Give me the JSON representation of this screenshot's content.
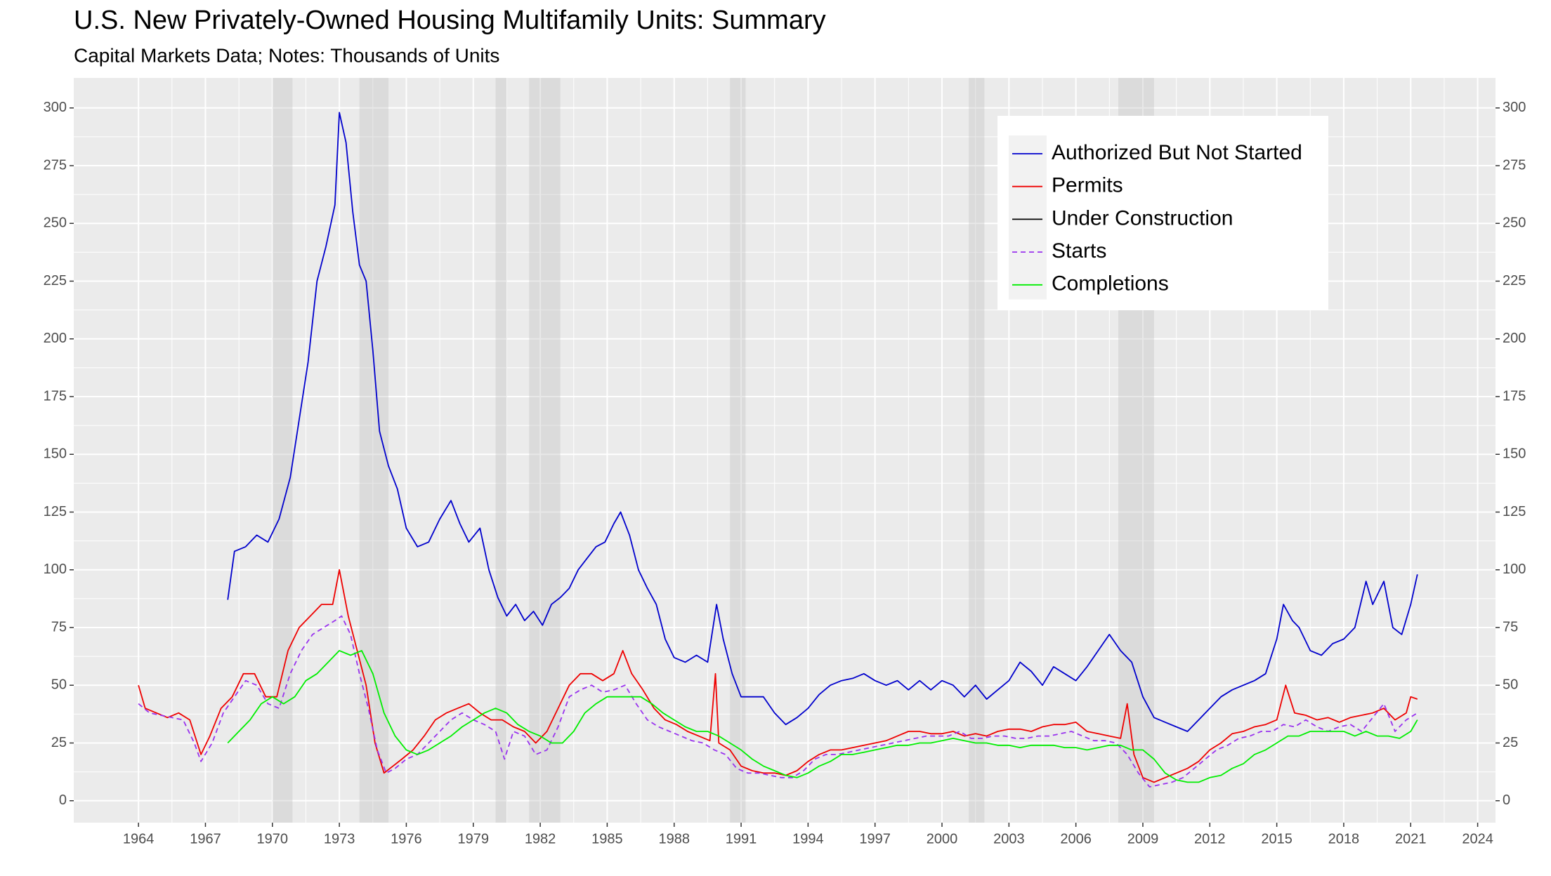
{
  "chart_data": {
    "type": "line",
    "title": "U.S. New Privately-Owned Housing Multifamily Units: Summary",
    "subtitle": "Capital Markets Data; Notes: Thousands of Units",
    "xlim": [
      1961.1,
      2024.8
    ],
    "ylim": [
      -9.5,
      313
    ],
    "xticks": [
      1964,
      1967,
      1970,
      1973,
      1976,
      1979,
      1982,
      1985,
      1988,
      1991,
      1994,
      1997,
      2000,
      2003,
      2006,
      2009,
      2012,
      2015,
      2018,
      2021,
      2024
    ],
    "yticks": [
      0,
      25,
      50,
      75,
      100,
      125,
      150,
      175,
      200,
      225,
      250,
      275,
      300
    ],
    "secondary_y_axis": true,
    "grid": true,
    "legend": "top-right",
    "recessions": [
      [
        1970.0,
        1970.9
      ],
      [
        1973.9,
        1975.2
      ],
      [
        1980.0,
        1980.5
      ],
      [
        1981.5,
        1982.9
      ],
      [
        1990.5,
        1991.2
      ],
      [
        2001.2,
        2001.9
      ],
      [
        2007.9,
        2009.5
      ]
    ],
    "series": [
      {
        "name": "Authorized But Not Started",
        "color": "#0000cc",
        "linestyle": "solid",
        "x": [
          1968.0,
          1968.3,
          1968.8,
          1969.3,
          1969.8,
          1970.3,
          1970.8,
          1971.2,
          1971.6,
          1972.0,
          1972.4,
          1972.8,
          1973.0,
          1973.3,
          1973.6,
          1973.9,
          1974.2,
          1974.5,
          1974.8,
          1975.2,
          1975.6,
          1976.0,
          1976.5,
          1977.0,
          1977.5,
          1978.0,
          1978.4,
          1978.8,
          1979.3,
          1979.7,
          1980.1,
          1980.5,
          1980.9,
          1981.3,
          1981.7,
          1982.1,
          1982.5,
          1982.9,
          1983.3,
          1983.7,
          1984.1,
          1984.5,
          1984.9,
          1985.3,
          1985.6,
          1986.0,
          1986.4,
          1986.8,
          1987.2,
          1987.6,
          1988.0,
          1988.5,
          1989.0,
          1989.5,
          1989.9,
          1990.2,
          1990.6,
          1991.0,
          1991.5,
          1992.0,
          1992.5,
          1993.0,
          1993.5,
          1994.0,
          1994.5,
          1995.0,
          1995.5,
          1996.0,
          1996.5,
          1997.0,
          1997.5,
          1998.0,
          1998.5,
          1999.0,
          1999.5,
          2000.0,
          2000.5,
          2001.0,
          2001.5,
          2002.0,
          2002.5,
          2003.0,
          2003.5,
          2004.0,
          2004.5,
          2005.0,
          2005.5,
          2006.0,
          2006.5,
          2007.0,
          2007.5,
          2008.0,
          2008.5,
          2009.0,
          2009.5,
          2010.0,
          2010.5,
          2011.0,
          2011.5,
          2012.0,
          2012.5,
          2013.0,
          2013.5,
          2014.0,
          2014.5,
          2015.0,
          2015.3,
          2015.7,
          2016.0,
          2016.5,
          2017.0,
          2017.5,
          2018.0,
          2018.5,
          2019.0,
          2019.3,
          2019.8,
          2020.2,
          2020.6,
          2021.0,
          2021.3
        ],
        "values": [
          87,
          108,
          110,
          115,
          112,
          122,
          140,
          165,
          190,
          225,
          240,
          258,
          298,
          285,
          255,
          232,
          225,
          195,
          160,
          145,
          135,
          118,
          110,
          112,
          122,
          130,
          120,
          112,
          118,
          100,
          88,
          80,
          85,
          78,
          82,
          76,
          85,
          88,
          92,
          100,
          105,
          110,
          112,
          120,
          125,
          115,
          100,
          92,
          85,
          70,
          62,
          60,
          63,
          60,
          85,
          70,
          55,
          45,
          45,
          45,
          38,
          33,
          36,
          40,
          46,
          50,
          52,
          53,
          55,
          52,
          50,
          52,
          48,
          52,
          48,
          52,
          50,
          45,
          50,
          44,
          48,
          52,
          60,
          56,
          50,
          58,
          55,
          52,
          58,
          65,
          72,
          65,
          60,
          45,
          36,
          34,
          32,
          30,
          35,
          40,
          45,
          48,
          50,
          52,
          55,
          70,
          85,
          78,
          75,
          65,
          63,
          68,
          70,
          75,
          95,
          85,
          95,
          75,
          72,
          85,
          98
        ]
      },
      {
        "name": "Permits",
        "color": "#ee0000",
        "linestyle": "solid",
        "x": [
          1964.0,
          1964.3,
          1964.8,
          1965.3,
          1965.8,
          1966.3,
          1966.8,
          1967.2,
          1967.7,
          1968.2,
          1968.7,
          1969.2,
          1969.7,
          1970.2,
          1970.7,
          1971.2,
          1971.7,
          1972.2,
          1972.7,
          1973.0,
          1973.4,
          1973.8,
          1974.2,
          1974.6,
          1975.0,
          1975.4,
          1975.8,
          1976.3,
          1976.8,
          1977.3,
          1977.8,
          1978.3,
          1978.8,
          1979.3,
          1979.8,
          1980.3,
          1980.8,
          1981.3,
          1981.8,
          1982.3,
          1982.8,
          1983.3,
          1983.8,
          1984.3,
          1984.8,
          1985.3,
          1985.7,
          1986.1,
          1986.6,
          1987.1,
          1987.6,
          1988.1,
          1988.6,
          1989.1,
          1989.6,
          1989.85,
          1990.0,
          1990.5,
          1991.0,
          1991.5,
          1992.0,
          1992.5,
          1993.0,
          1993.5,
          1994.0,
          1994.5,
          1995.0,
          1995.5,
          1996.0,
          1996.5,
          1997.0,
          1997.5,
          1998.0,
          1998.5,
          1999.0,
          1999.5,
          2000.0,
          2000.5,
          2001.0,
          2001.5,
          2002.0,
          2002.5,
          2003.0,
          2003.5,
          2004.0,
          2004.5,
          2005.0,
          2005.5,
          2006.0,
          2006.5,
          2007.0,
          2007.5,
          2008.0,
          2008.3,
          2008.6,
          2009.0,
          2009.5,
          2010.0,
          2010.5,
          2011.0,
          2011.5,
          2012.0,
          2012.5,
          2013.0,
          2013.5,
          2014.0,
          2014.5,
          2015.0,
          2015.4,
          2015.8,
          2016.3,
          2016.8,
          2017.3,
          2017.8,
          2018.3,
          2018.8,
          2019.3,
          2019.8,
          2020.3,
          2020.8,
          2021.0,
          2021.3
        ],
        "values": [
          50,
          40,
          38,
          36,
          38,
          35,
          20,
          28,
          40,
          45,
          55,
          55,
          45,
          45,
          65,
          75,
          80,
          85,
          85,
          100,
          80,
          65,
          50,
          25,
          12,
          15,
          18,
          22,
          28,
          35,
          38,
          40,
          42,
          38,
          35,
          35,
          32,
          30,
          25,
          30,
          40,
          50,
          55,
          55,
          52,
          55,
          65,
          55,
          48,
          40,
          35,
          33,
          30,
          28,
          26,
          55,
          25,
          22,
          15,
          13,
          12,
          12,
          11,
          13,
          17,
          20,
          22,
          22,
          23,
          24,
          25,
          26,
          28,
          30,
          30,
          29,
          29,
          30,
          28,
          29,
          28,
          30,
          31,
          31,
          30,
          32,
          33,
          33,
          34,
          30,
          29,
          28,
          27,
          42,
          20,
          10,
          8,
          10,
          12,
          14,
          17,
          22,
          25,
          29,
          30,
          32,
          33,
          35,
          50,
          38,
          37,
          35,
          36,
          34,
          36,
          37,
          38,
          40,
          35,
          38,
          45,
          44
        ]
      },
      {
        "name": "Under Construction",
        "color": "#000000",
        "linestyle": "solid",
        "x": [],
        "values": []
      },
      {
        "name": "Starts",
        "color": "#9933ee",
        "linestyle": "dashed",
        "x": [
          1964.0,
          1964.5,
          1965.0,
          1965.5,
          1966.0,
          1966.5,
          1966.8,
          1967.3,
          1967.8,
          1968.3,
          1968.8,
          1969.3,
          1969.8,
          1970.3,
          1970.8,
          1971.3,
          1971.8,
          1972.3,
          1972.8,
          1973.1,
          1973.5,
          1973.9,
          1974.3,
          1974.7,
          1975.1,
          1975.5,
          1976.0,
          1976.5,
          1977.0,
          1977.5,
          1978.0,
          1978.5,
          1979.0,
          1979.5,
          1980.0,
          1980.4,
          1980.8,
          1981.3,
          1981.8,
          1982.3,
          1982.8,
          1983.3,
          1983.8,
          1984.3,
          1984.8,
          1985.3,
          1985.8,
          1986.3,
          1986.8,
          1987.3,
          1987.8,
          1988.3,
          1988.8,
          1989.3,
          1989.8,
          1990.3,
          1990.8,
          1991.3,
          1991.8,
          1992.3,
          1992.8,
          1993.3,
          1993.8,
          1994.3,
          1994.8,
          1995.3,
          1995.8,
          1996.3,
          1996.8,
          1997.3,
          1997.8,
          1998.3,
          1998.8,
          1999.3,
          1999.8,
          2000.3,
          2000.8,
          2001.3,
          2001.8,
          2002.3,
          2002.8,
          2003.3,
          2003.8,
          2004.3,
          2004.8,
          2005.3,
          2005.8,
          2006.3,
          2006.8,
          2007.3,
          2007.8,
          2008.3,
          2008.8,
          2009.3,
          2009.8,
          2010.3,
          2010.8,
          2011.3,
          2011.8,
          2012.3,
          2012.8,
          2013.3,
          2013.8,
          2014.3,
          2014.8,
          2015.3,
          2015.8,
          2016.3,
          2016.8,
          2017.3,
          2017.8,
          2018.3,
          2018.8,
          2019.3,
          2019.8,
          2020.3,
          2020.8,
          2021.3
        ],
        "values": [
          42,
          38,
          37,
          36,
          35,
          25,
          17,
          25,
          38,
          45,
          52,
          50,
          42,
          40,
          55,
          65,
          72,
          75,
          78,
          80,
          72,
          55,
          40,
          22,
          12,
          14,
          18,
          20,
          25,
          30,
          35,
          38,
          35,
          33,
          30,
          18,
          30,
          28,
          20,
          22,
          32,
          45,
          48,
          50,
          47,
          48,
          50,
          42,
          35,
          32,
          30,
          28,
          26,
          25,
          22,
          20,
          14,
          12,
          12,
          11,
          10,
          10,
          13,
          18,
          20,
          20,
          21,
          22,
          23,
          24,
          25,
          26,
          27,
          28,
          28,
          28,
          30,
          27,
          27,
          28,
          28,
          27,
          27,
          28,
          28,
          29,
          30,
          28,
          26,
          26,
          25,
          20,
          12,
          6,
          7,
          8,
          10,
          14,
          18,
          22,
          24,
          27,
          28,
          30,
          30,
          33,
          32,
          35,
          32,
          30,
          32,
          33,
          30,
          36,
          42,
          30,
          35,
          38
        ]
      },
      {
        "name": "Completions",
        "color": "#00ee00",
        "linestyle": "solid",
        "x": [
          1968.0,
          1968.5,
          1969.0,
          1969.5,
          1970.0,
          1970.5,
          1971.0,
          1971.5,
          1972.0,
          1972.5,
          1973.0,
          1973.5,
          1974.0,
          1974.5,
          1975.0,
          1975.5,
          1976.0,
          1976.5,
          1977.0,
          1977.5,
          1978.0,
          1978.5,
          1979.0,
          1979.5,
          1980.0,
          1980.5,
          1981.0,
          1981.5,
          1982.0,
          1982.5,
          1983.0,
          1983.5,
          1984.0,
          1984.5,
          1985.0,
          1985.5,
          1986.0,
          1986.5,
          1987.0,
          1987.5,
          1988.0,
          1988.5,
          1989.0,
          1989.5,
          1990.0,
          1990.5,
          1991.0,
          1991.5,
          1992.0,
          1992.5,
          1993.0,
          1993.5,
          1994.0,
          1994.5,
          1995.0,
          1995.5,
          1996.0,
          1996.5,
          1997.0,
          1997.5,
          1998.0,
          1998.5,
          1999.0,
          1999.5,
          2000.0,
          2000.5,
          2001.0,
          2001.5,
          2002.0,
          2002.5,
          2003.0,
          2003.5,
          2004.0,
          2004.5,
          2005.0,
          2005.5,
          2006.0,
          2006.5,
          2007.0,
          2007.5,
          2008.0,
          2008.5,
          2009.0,
          2009.5,
          2010.0,
          2010.5,
          2011.0,
          2011.5,
          2012.0,
          2012.5,
          2013.0,
          2013.5,
          2014.0,
          2014.5,
          2015.0,
          2015.5,
          2016.0,
          2016.5,
          2017.0,
          2017.5,
          2018.0,
          2018.5,
          2019.0,
          2019.5,
          2020.0,
          2020.5,
          2021.0,
          2021.3
        ],
        "values": [
          25,
          30,
          35,
          42,
          45,
          42,
          45,
          52,
          55,
          60,
          65,
          63,
          65,
          55,
          38,
          28,
          22,
          20,
          22,
          25,
          28,
          32,
          35,
          38,
          40,
          38,
          33,
          30,
          28,
          25,
          25,
          30,
          38,
          42,
          45,
          45,
          45,
          45,
          42,
          38,
          35,
          32,
          30,
          30,
          28,
          25,
          22,
          18,
          15,
          13,
          11,
          10,
          12,
          15,
          17,
          20,
          20,
          21,
          22,
          23,
          24,
          24,
          25,
          25,
          26,
          27,
          26,
          25,
          25,
          24,
          24,
          23,
          24,
          24,
          24,
          23,
          23,
          22,
          23,
          24,
          24,
          22,
          22,
          18,
          12,
          9,
          8,
          8,
          10,
          11,
          14,
          16,
          20,
          22,
          25,
          28,
          28,
          30,
          30,
          30,
          30,
          28,
          30,
          28,
          28,
          27,
          30,
          35
        ]
      }
    ]
  }
}
